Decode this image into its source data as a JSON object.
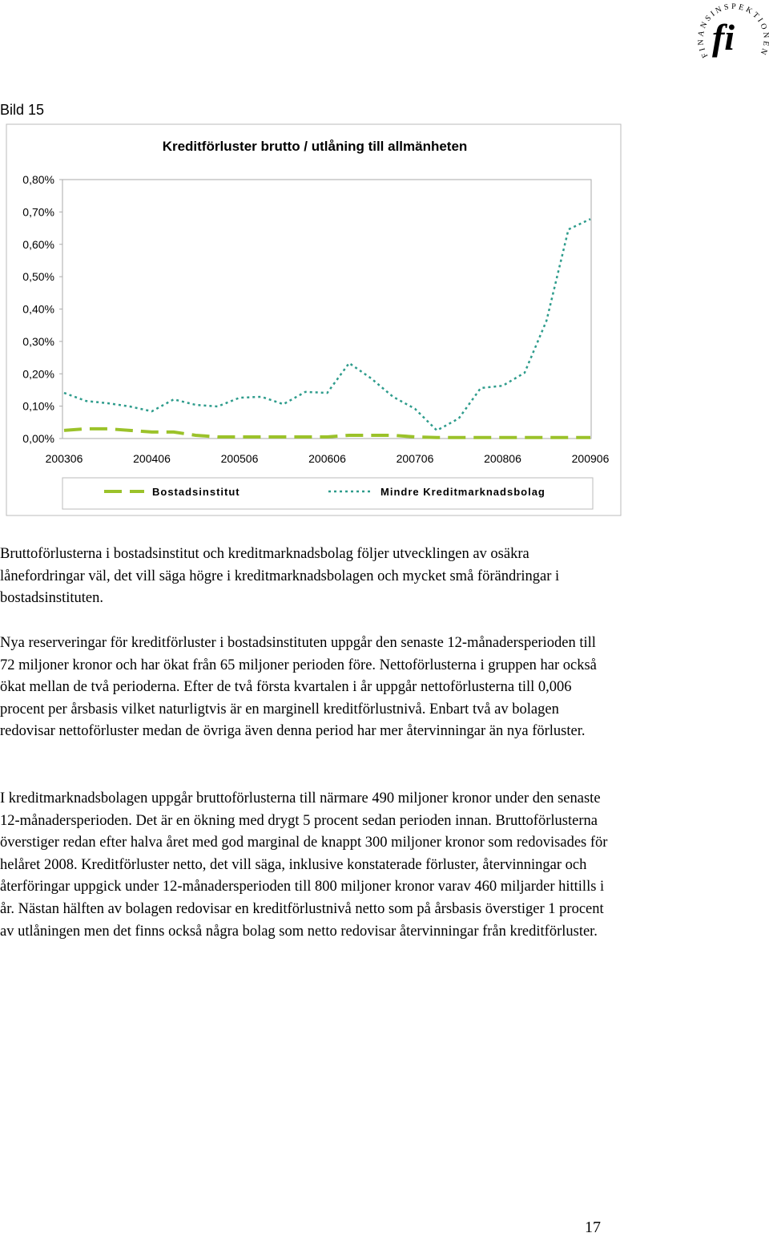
{
  "header": {
    "logo_mark": "fi",
    "logo_text": "FINANSINSPEKTIONEN",
    "figure_label": "Bild 15"
  },
  "chart_data": {
    "type": "line",
    "title": "Kreditförluster brutto / utlåning till allmänheten",
    "categories": [
      "200306",
      null,
      null,
      null,
      "200406",
      null,
      null,
      null,
      "200506",
      null,
      null,
      null,
      "200606",
      null,
      null,
      null,
      "200706",
      null,
      null,
      null,
      "200806",
      null,
      null,
      null,
      "200906"
    ],
    "series": [
      {
        "name": "Bostadsinstitut",
        "color": "#9bc22a",
        "dash": "22,10",
        "values": [
          0.025,
          0.03,
          0.03,
          0.025,
          0.02,
          0.02,
          0.01,
          0.005,
          0.005,
          0.005,
          0.005,
          0.005,
          0.005,
          0.01,
          0.01,
          0.01,
          0.005,
          0.003,
          0.003,
          0.003,
          0.003,
          0.003,
          0.003,
          0.003,
          0.003
        ]
      },
      {
        "name": "Mindre Kreditmarknadsbolag",
        "color": "#2e9c8c",
        "dash": "3,4",
        "values": [
          0.141,
          0.116,
          0.109,
          0.099,
          0.084,
          0.121,
          0.104,
          0.099,
          0.126,
          0.129,
          0.106,
          0.144,
          0.141,
          0.233,
          0.186,
          0.129,
          0.092,
          0.025,
          0.062,
          0.156,
          0.163,
          0.203,
          0.364,
          0.646,
          0.678
        ]
      }
    ],
    "ylim": [
      0,
      0.8
    ],
    "yticks": [
      {
        "value": 0,
        "label": "0,00%"
      },
      {
        "value": 0.1,
        "label": "0,10%"
      },
      {
        "value": 0.2,
        "label": "0,20%"
      },
      {
        "value": 0.3,
        "label": "0,30%"
      },
      {
        "value": 0.4,
        "label": "0,40%"
      },
      {
        "value": 0.5,
        "label": "0,50%"
      },
      {
        "value": 0.6,
        "label": "0,60%"
      },
      {
        "value": 0.7,
        "label": "0,70%"
      },
      {
        "value": 0.8,
        "label": "0,80%"
      }
    ],
    "grid": false,
    "legend": "bottom"
  },
  "paragraphs": [
    "Bruttoförlusterna i bostadsinstitut och kreditmarknadsbolag följer utvecklingen av osäkra lånefordringar väl, det vill säga högre i kreditmarknadsbolagen och mycket små förändringar i bostadsinstituten.",
    "Nya reserveringar för kreditförluster i bostadsinstituten uppgår den senaste 12-månadersperioden till 72 miljoner kronor och har ökat från 65 miljoner perioden före. Nettoförlusterna i gruppen har också ökat mellan de två perioderna. Efter de två första kvartalen i år uppgår nettoförlusterna till 0,006 procent per årsbasis vilket naturligtvis är en marginell kreditförlustnivå. Enbart två av bolagen redovisar nettoförluster medan de övriga även denna period har mer återvinningar än nya förluster.",
    "I kreditmarknadsbolagen uppgår bruttoförlusterna till närmare 490 miljoner kronor under den senaste 12-månadersperioden. Det är en ökning med drygt 5 procent sedan perioden innan. Bruttoförlusterna överstiger redan efter halva året med god marginal de knappt 300 miljoner kronor som redovisades för helåret 2008. Kreditförluster netto, det vill säga, inklusive konstaterade förluster, återvinningar och återföringar uppgick under 12-månadersperioden till 800 miljoner kronor varav 460 miljarder hittills i år. Nästan hälften av bolagen redovisar en kreditförlustnivå netto som på årsbasis överstiger 1 procent av utlåningen men det finns också några bolag som netto redovisar återvinningar från kreditförluster."
  ],
  "page_number": "17"
}
